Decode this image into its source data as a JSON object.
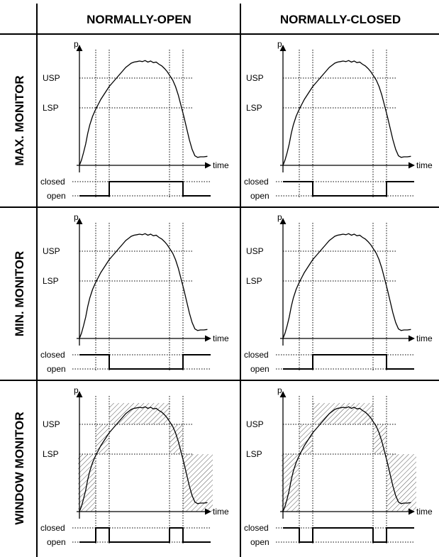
{
  "columns": [
    "NORMALLY-OPEN",
    "NORMALLY-CLOSED"
  ],
  "rows": [
    {
      "label": "MAX. MONITOR",
      "mode": "max"
    },
    {
      "label": "MIN. MONITOR",
      "mode": "min"
    },
    {
      "label": "WINDOW MONITOR",
      "mode": "window"
    }
  ],
  "labels": {
    "p_axis": "p",
    "time_axis": "time",
    "usp": "USP",
    "lsp": "LSP",
    "closed": "closed",
    "open": "open"
  },
  "colors": {
    "line": "#000000",
    "dotted": "#000000",
    "hatch": "#666666",
    "background": "#ffffff"
  }
}
